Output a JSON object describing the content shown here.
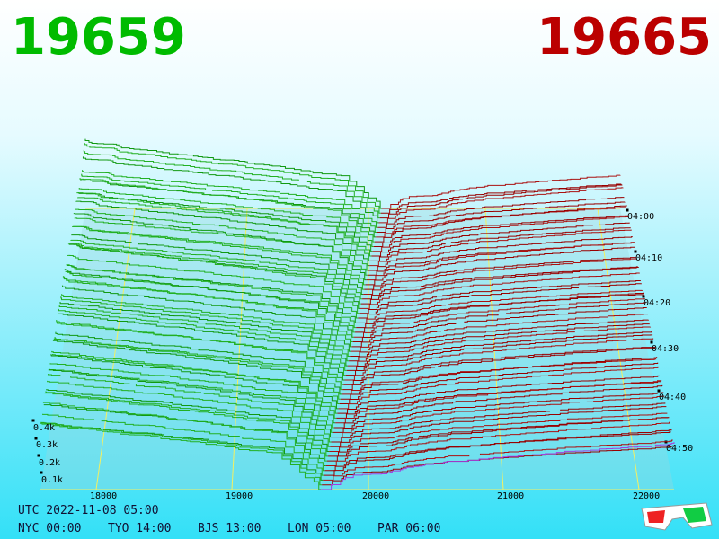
{
  "bid_price": "19659",
  "ask_price": "19665",
  "price_axis": [
    "18000",
    "19000",
    "20000",
    "21000",
    "22000"
  ],
  "depth_axis": [
    "0.4k",
    "0.3k",
    "0.2k",
    "0.1k"
  ],
  "time_axis": [
    "04:00",
    "04:10",
    "04:20",
    "04:30",
    "04:40",
    "04:50"
  ],
  "clock": {
    "utc": "UTC 2022-11-08 05:00",
    "cities": [
      "NYC 00:00",
      "TYO 14:00",
      "BJS 13:00",
      "LON 05:00",
      "PAR 06:00"
    ]
  }
}
